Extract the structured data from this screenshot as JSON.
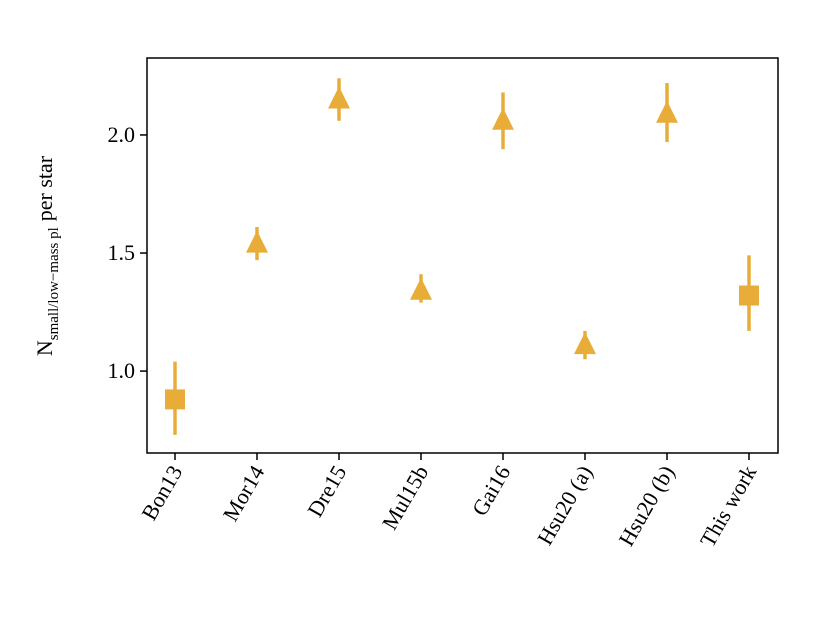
{
  "chart_data": {
    "type": "errorbar",
    "ylabel": {
      "main": "N",
      "sub": "small/low−mass pl",
      "rest": "per star"
    },
    "categories": [
      "Bon13",
      "Mor14",
      "Dre15",
      "Mul15b",
      "Gai16",
      "Hsu20 (a)",
      "Hsu20 (b)",
      "This work"
    ],
    "values": [
      0.88,
      1.54,
      2.15,
      1.34,
      2.06,
      1.11,
      2.09,
      1.32
    ],
    "error_low": [
      0.15,
      0.07,
      0.09,
      0.05,
      0.12,
      0.06,
      0.12,
      0.15
    ],
    "error_high": [
      0.16,
      0.07,
      0.09,
      0.07,
      0.12,
      0.06,
      0.13,
      0.17
    ],
    "markers": [
      "square",
      "triangle",
      "triangle",
      "triangle",
      "triangle",
      "triangle",
      "triangle",
      "square"
    ],
    "color": "#e8ad38",
    "ylim": [
      0.653,
      2.326
    ],
    "yticks": [
      {
        "value": 1.0,
        "label": "1.0"
      },
      {
        "value": 1.5,
        "label": "1.5"
      },
      {
        "value": 2.0,
        "label": "2.0"
      }
    ]
  }
}
